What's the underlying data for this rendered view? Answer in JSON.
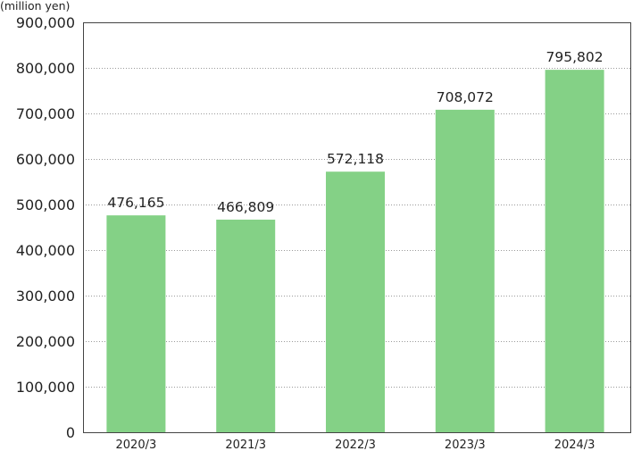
{
  "chart_data": {
    "type": "bar",
    "unit_label": "(million yen)",
    "categories": [
      "2020/3",
      "2021/3",
      "2022/3",
      "2023/3",
      "2024/3"
    ],
    "values": [
      476165,
      466809,
      572118,
      708072,
      795802
    ],
    "value_labels": [
      "476,165",
      "466,809",
      "572,118",
      "708,072",
      "795,802"
    ],
    "ylim": [
      0,
      900000
    ],
    "yticks": [
      0,
      100000,
      200000,
      300000,
      400000,
      500000,
      600000,
      700000,
      800000,
      900000
    ],
    "ytick_labels": [
      "0",
      "100,000",
      "200,000",
      "300,000",
      "400,000",
      "500,000",
      "600,000",
      "700,000",
      "800,000",
      "900,000"
    ],
    "grid": true,
    "bar_color": "#84d186"
  }
}
